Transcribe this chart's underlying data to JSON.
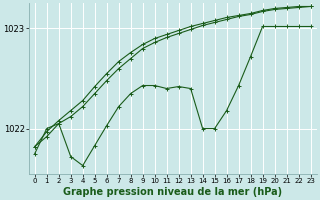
{
  "background_color": "#cce8e8",
  "grid_color": "#ffffff",
  "line_color": "#1a5c1a",
  "xlabel": "Graphe pression niveau de la mer (hPa)",
  "xlabel_fontsize": 7,
  "yticks": [
    1022,
    1023
  ],
  "xticks": [
    0,
    1,
    2,
    3,
    4,
    5,
    6,
    7,
    8,
    9,
    10,
    11,
    12,
    13,
    14,
    15,
    16,
    17,
    18,
    19,
    20,
    21,
    22,
    23
  ],
  "xlim": [
    -0.5,
    23.5
  ],
  "ylim": [
    1021.55,
    1023.25
  ],
  "line1_x": [
    0,
    1,
    2,
    3,
    4,
    5,
    6,
    7,
    8,
    9,
    10,
    11,
    12,
    13,
    14,
    15,
    16,
    17,
    18,
    19,
    20,
    21,
    22,
    23
  ],
  "line1_y": [
    1021.82,
    1021.92,
    1022.05,
    1022.12,
    1022.22,
    1022.35,
    1022.48,
    1022.6,
    1022.7,
    1022.8,
    1022.86,
    1022.91,
    1022.95,
    1022.99,
    1023.03,
    1023.06,
    1023.09,
    1023.12,
    1023.14,
    1023.17,
    1023.19,
    1023.2,
    1023.21,
    1023.22
  ],
  "line2_x": [
    0,
    1,
    2,
    3,
    4,
    5,
    6,
    7,
    8,
    9,
    10,
    11,
    12,
    13,
    14,
    15,
    16,
    17,
    18,
    19,
    20,
    21,
    22,
    23
  ],
  "line2_y": [
    1021.82,
    1021.97,
    1022.08,
    1022.18,
    1022.28,
    1022.42,
    1022.55,
    1022.67,
    1022.76,
    1022.84,
    1022.9,
    1022.94,
    1022.98,
    1023.02,
    1023.05,
    1023.08,
    1023.11,
    1023.13,
    1023.15,
    1023.18,
    1023.2,
    1023.21,
    1023.22,
    1023.22
  ],
  "line3_x": [
    0,
    1,
    2,
    3,
    4,
    5,
    6,
    7,
    8,
    9,
    10,
    11,
    12,
    13,
    14,
    15,
    16,
    17,
    18,
    19,
    20,
    21,
    22,
    23
  ],
  "line3_y": [
    1021.75,
    1022.0,
    1022.05,
    1021.72,
    1021.63,
    1021.83,
    1022.03,
    1022.22,
    1022.35,
    1022.43,
    1022.43,
    1022.4,
    1022.42,
    1022.4,
    1022.0,
    1022.0,
    1022.18,
    1022.43,
    1022.72,
    1023.02,
    1023.02,
    1023.02,
    1023.02,
    1023.02
  ],
  "marker": "+",
  "markersize": 3,
  "linewidth": 0.8
}
